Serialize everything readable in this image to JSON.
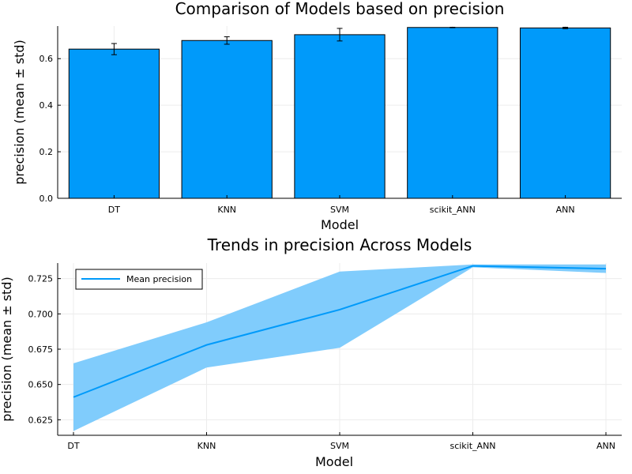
{
  "chart_data": [
    {
      "type": "bar",
      "title": "Comparison of Models based on precision",
      "xlabel": "Model",
      "ylabel": "precision (mean ± std)",
      "categories": [
        "DT",
        "KNN",
        "SVM",
        "scikit_ANN",
        "ANN"
      ],
      "values": [
        0.641,
        0.678,
        0.703,
        0.734,
        0.732
      ],
      "errors": [
        0.024,
        0.016,
        0.027,
        0.001,
        0.003
      ],
      "ylim": [
        0,
        0.74
      ],
      "yticks": [
        0.0,
        0.2,
        0.4,
        0.6
      ],
      "ytick_labels": [
        "0.0",
        "0.2",
        "0.4",
        "0.6"
      ],
      "color": "#009AFA",
      "grid": true,
      "legend": "none"
    },
    {
      "type": "line",
      "title": "Trends in precision Across Models",
      "xlabel": "Model",
      "ylabel": "precision (mean ± std)",
      "categories": [
        "DT",
        "KNN",
        "SVM",
        "scikit_ANN",
        "ANN"
      ],
      "series": [
        {
          "name": "Mean precision",
          "values": [
            0.641,
            0.678,
            0.703,
            0.734,
            0.732
          ],
          "lower": [
            0.617,
            0.662,
            0.676,
            0.733,
            0.729
          ],
          "upper": [
            0.665,
            0.694,
            0.73,
            0.735,
            0.735
          ]
        }
      ],
      "ylim": [
        0.614,
        0.736
      ],
      "yticks": [
        0.625,
        0.65,
        0.675,
        0.7,
        0.725
      ],
      "ytick_labels": [
        "0.625",
        "0.650",
        "0.675",
        "0.700",
        "0.725"
      ],
      "color": "#009AFA",
      "band_color": "#80CCFC",
      "grid": true,
      "legend": "top-left"
    }
  ]
}
